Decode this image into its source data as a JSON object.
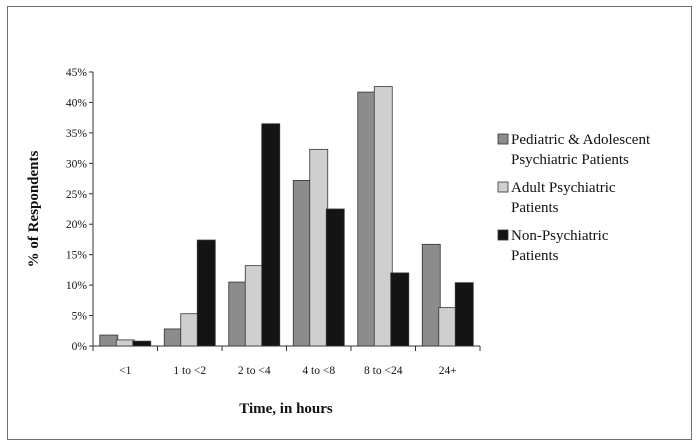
{
  "chart_data": {
    "type": "bar",
    "title": "",
    "xlabel": "Time, in hours",
    "ylabel": "% of Respondents",
    "categories": [
      "<1",
      "1 to <2",
      "2 to <4",
      "4 to <8",
      "8 to <24",
      "24+"
    ],
    "ylim": [
      0,
      45
    ],
    "yticks": [
      "0%",
      "5%",
      "10%",
      "15%",
      "20%",
      "25%",
      "30%",
      "35%",
      "40%",
      "45%"
    ],
    "grid": false,
    "legend_position": "right",
    "series": [
      {
        "name": "Pediatric & Adolescent Psychiatric Patients",
        "legend_lines": [
          "Pediatric & Adolescent",
          "Psychiatric Patients"
        ],
        "color": "#8c8c8c",
        "values": [
          1.8,
          2.8,
          10.5,
          27.2,
          41.7,
          16.7
        ]
      },
      {
        "name": "Adult Psychiatric Patients",
        "legend_lines": [
          "Adult Psychiatric",
          "Patients"
        ],
        "color": "#cfcfcf",
        "values": [
          1.0,
          5.3,
          13.2,
          32.3,
          42.6,
          6.3
        ]
      },
      {
        "name": "Non-Psychiatric Patients",
        "legend_lines": [
          "Non-Psychiatric",
          "Patients"
        ],
        "color": "#141414",
        "values": [
          0.8,
          17.4,
          36.5,
          22.5,
          12.0,
          10.4
        ]
      }
    ]
  }
}
